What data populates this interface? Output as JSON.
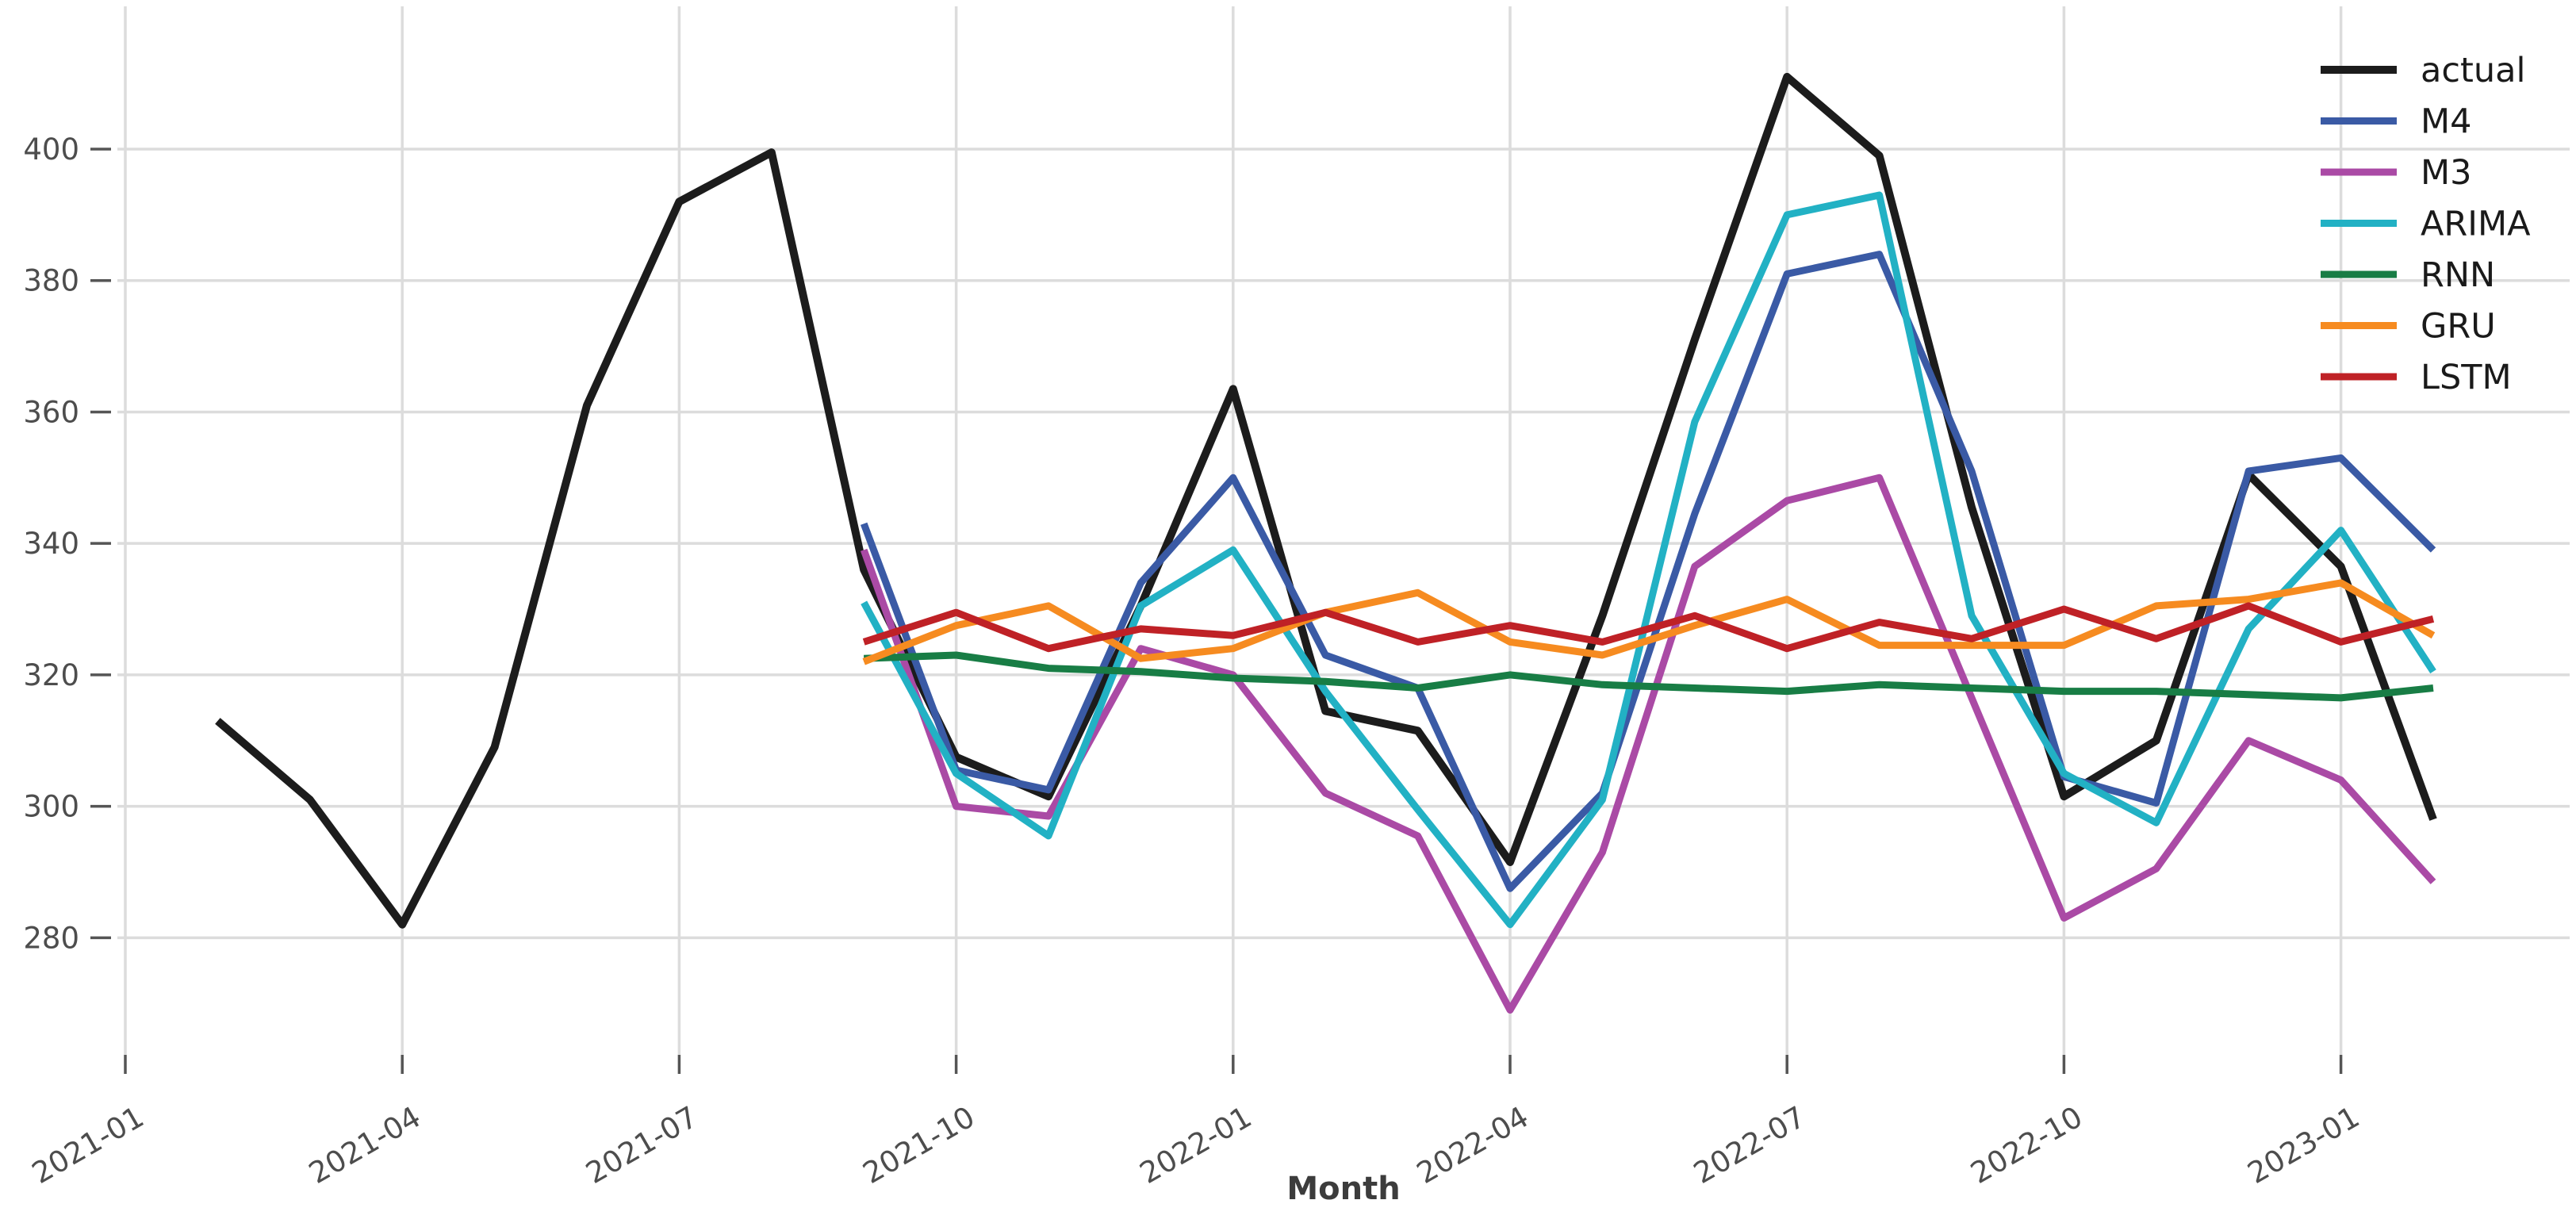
{
  "chart_data": {
    "type": "line",
    "title": "",
    "xlabel": "Month",
    "ylabel": "",
    "grid": true,
    "legend_position": "upper right",
    "x_tick_labels": [
      "2021-01",
      "2021-04",
      "2021-07",
      "2021-10",
      "2022-01",
      "2022-04",
      "2022-07",
      "2022-10",
      "2023-01"
    ],
    "x_tick_month_indices": [
      0,
      3,
      6,
      9,
      12,
      15,
      18,
      21,
      24
    ],
    "x_months_span": [
      "2021-01",
      "2023-02"
    ],
    "y_ticks": [
      280,
      300,
      320,
      340,
      360,
      380,
      400
    ],
    "ylim": [
      263,
      417
    ],
    "series": [
      {
        "name": "actual",
        "color": "#1c1c1c",
        "start_month_index": 1,
        "values": [
          313,
          301,
          282,
          309,
          361,
          392,
          399.5,
          336,
          307.5,
          301.5,
          330.5,
          363.5,
          314.5,
          311.5,
          291.5,
          329,
          371,
          411,
          399,
          345.5,
          301.5,
          310,
          350.5,
          336.5,
          298
        ]
      },
      {
        "name": "M4",
        "color": "#3a5aa5",
        "start_month_index": 8,
        "values": [
          343,
          305.5,
          302.5,
          334,
          350,
          323,
          318,
          287.5,
          302,
          344.5,
          381,
          384,
          351,
          304.5,
          300.5,
          351,
          353,
          339
        ]
      },
      {
        "name": "M3",
        "color": "#aa4aa5",
        "start_month_index": 8,
        "values": [
          339,
          300,
          298.5,
          324,
          320,
          302,
          295.5,
          269,
          293,
          336.5,
          346.5,
          350,
          316.5,
          283,
          290.5,
          310,
          304,
          288.5
        ]
      },
      {
        "name": "ARIMA",
        "color": "#22b1c4",
        "start_month_index": 8,
        "values": [
          331,
          305,
          295.5,
          330.5,
          339,
          317.5,
          299.5,
          282,
          301,
          358.5,
          390,
          393,
          329,
          305,
          297.5,
          327,
          342,
          320.5
        ]
      },
      {
        "name": "RNN",
        "color": "#187d45",
        "start_month_index": 8,
        "values": [
          322.5,
          323,
          321,
          320.5,
          319.5,
          319,
          318,
          320,
          318.5,
          318,
          317.5,
          318.5,
          318,
          317.5,
          317.5,
          317,
          316.5,
          318
        ]
      },
      {
        "name": "GRU",
        "color": "#f68b20",
        "start_month_index": 8,
        "values": [
          322,
          327.5,
          330.5,
          322.5,
          324,
          329.5,
          332.5,
          325,
          323,
          327.5,
          331.5,
          324.5,
          324.5,
          324.5,
          330.5,
          331.5,
          334,
          326
        ]
      },
      {
        "name": "LSTM",
        "color": "#bf2126",
        "start_month_index": 8,
        "values": [
          325,
          329.5,
          324,
          327,
          326,
          329.5,
          325,
          327.5,
          325,
          329,
          324,
          328,
          325.5,
          330,
          325.5,
          330.5,
          325,
          328.5
        ]
      }
    ]
  },
  "style_tokens": {
    "background_color": "#ffffff",
    "grid_color": "#dcdcdc",
    "tick_mark_color": "#555555",
    "tick_text_color": "#4d4d4d",
    "axis_title_color": "#3c3c3c",
    "legend_text_color": "#1a1a1a"
  }
}
